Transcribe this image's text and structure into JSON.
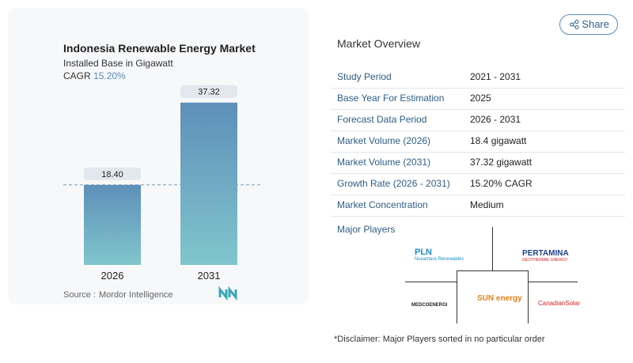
{
  "share": "Share",
  "chart_data": {
    "type": "bar",
    "title": "Indonesia Renewable Energy Market",
    "subtitle": "Installed Base in Gigawatt",
    "cagr_label": "CAGR",
    "cagr_value": "15.20%",
    "categories": [
      "2026",
      "2031"
    ],
    "values": [
      18.4,
      37.32
    ],
    "value_labels": [
      "18.40",
      "37.32"
    ],
    "ylim": [
      0,
      40
    ],
    "source_label": "Source :",
    "source": "Mordor Intelligence"
  },
  "overview": {
    "title": "Market Overview",
    "rows": [
      [
        "Study Period",
        "2021 - 2031"
      ],
      [
        "Base Year For Estimation",
        "2025"
      ],
      [
        "Forecast Data Period",
        "2026 - 2031"
      ],
      [
        "Market Volume (2026)",
        "18.4 gigawatt"
      ],
      [
        "Market Volume (2031)",
        "37.32 gigawatt"
      ],
      [
        "Growth Rate (2026 - 2031)",
        "15.20% CAGR"
      ],
      [
        "Market Concentration",
        "Medium"
      ]
    ]
  },
  "players": {
    "title": "Major Players",
    "names": [
      "PLN",
      "Nusantara Renewables",
      "PERTAMINA",
      "GEOTHERMAL ENERGY",
      "MEDCOENERGI",
      "SUN energy",
      "CanadianSolar"
    ]
  },
  "disclaimer": "*Disclaimer: Major Players sorted in no particular order"
}
